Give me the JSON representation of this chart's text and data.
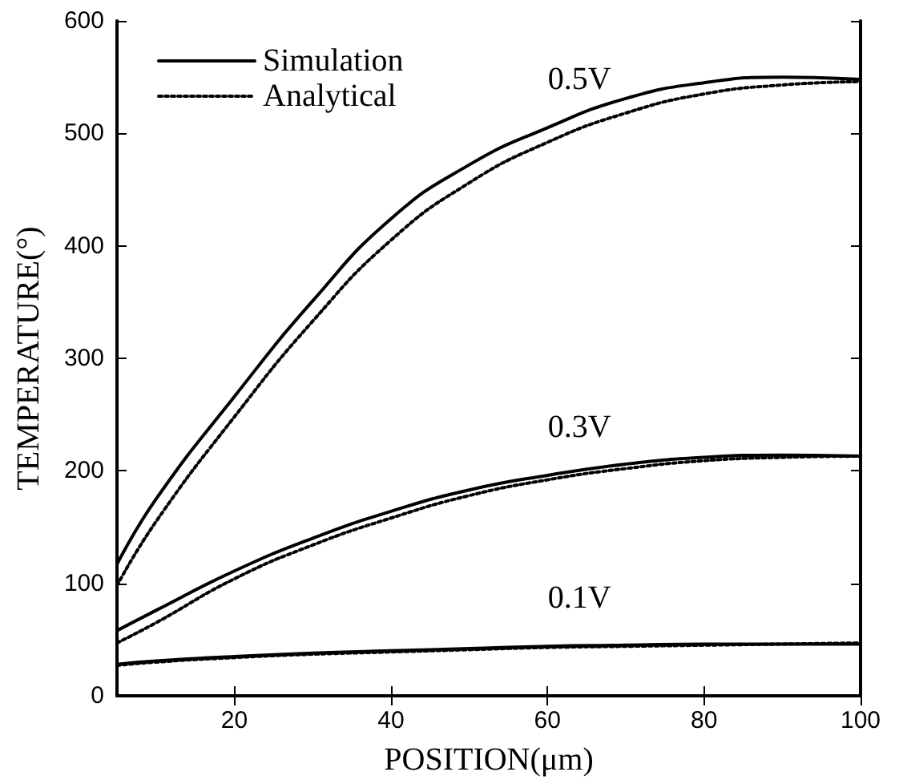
{
  "chart_data": {
    "type": "line",
    "xlabel": "POSITION(μm)",
    "ylabel": "TEMPERATURE(°)",
    "x": [
      5,
      10,
      20,
      30,
      40,
      50,
      60,
      70,
      80,
      90,
      100
    ],
    "series": [
      {
        "name": "Simulation",
        "color": "#000000",
        "line_style": "solid",
        "values": [
          117,
          175,
          266,
          351,
          424,
          472,
          505,
          531,
          545,
          550,
          548
        ]
      },
      {
        "name": "Analytical",
        "color": "#000000",
        "line_style": "dotted",
        "values": [
          98,
          155,
          248,
          333,
          405,
          456,
          492,
          518,
          535,
          543,
          546
        ]
      },
      {
        "color": "#000000",
        "line_style": "solid",
        "values": [
          58,
          76,
          111,
          140,
          164,
          183,
          196,
          206,
          212,
          214,
          213
        ]
      },
      {
        "color": "#000000",
        "line_style": "dotted",
        "values": [
          47,
          65,
          104,
          134,
          158,
          178,
          192,
          202,
          209,
          212,
          213
        ]
      },
      {
        "color": "#000000",
        "line_style": "solid",
        "values": [
          28,
          31,
          35,
          38,
          40,
          42,
          44,
          45,
          46,
          46,
          46
        ]
      },
      {
        "color": "#000000",
        "line_style": "dotted",
        "values": [
          27,
          30,
          34,
          37,
          39,
          41,
          43,
          44,
          45,
          46,
          47
        ]
      }
    ],
    "annotations": [
      "0.5V",
      "0.3V",
      "0.1V"
    ],
    "xlim": [
      5,
      100
    ],
    "xticks": [
      20,
      40,
      60,
      80,
      100
    ],
    "ylim": [
      0,
      600
    ],
    "yticks": [
      0,
      100,
      200,
      300,
      400,
      500,
      600
    ],
    "legend": "top left",
    "grid": false,
    "marker": "none"
  }
}
